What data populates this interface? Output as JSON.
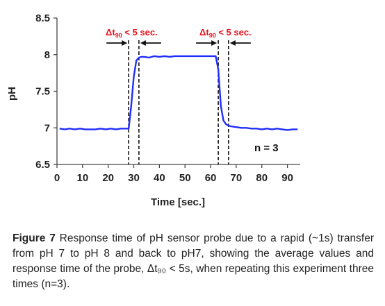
{
  "chart_data": {
    "type": "line",
    "xlabel": "Time [sec.]",
    "ylabel": "pH",
    "xlim": [
      0,
      95
    ],
    "ylim": [
      6.5,
      8.5
    ],
    "x_ticks": [
      "0",
      "10",
      "20",
      "30",
      "40",
      "50",
      "60",
      "70",
      "80",
      "90"
    ],
    "y_ticks": [
      "6.5",
      "7",
      "7.5",
      "8",
      "8.5"
    ],
    "grid": false,
    "line_color": "#1f2dff",
    "x": [
      1,
      3,
      5,
      7,
      9,
      11,
      13,
      15,
      17,
      19,
      21,
      23,
      25,
      27,
      28,
      29,
      30,
      31,
      32,
      33,
      34,
      36,
      38,
      40,
      42,
      44,
      46,
      48,
      50,
      52,
      54,
      56,
      58,
      60,
      62,
      63,
      64,
      65,
      66,
      67,
      68,
      70,
      72,
      74,
      76,
      78,
      80,
      82,
      84,
      86,
      88,
      90,
      92,
      94
    ],
    "y": [
      6.99,
      6.98,
      6.99,
      6.98,
      6.99,
      6.98,
      6.98,
      6.98,
      6.99,
      6.98,
      6.99,
      6.98,
      6.99,
      6.99,
      6.99,
      7.3,
      7.7,
      7.92,
      7.96,
      7.97,
      7.97,
      7.96,
      7.98,
      7.97,
      7.98,
      7.97,
      7.98,
      7.98,
      7.98,
      7.98,
      7.98,
      7.98,
      7.98,
      7.98,
      7.98,
      7.8,
      7.3,
      7.1,
      7.05,
      7.03,
      7.02,
      7.01,
      7.0,
      7.0,
      6.99,
      6.99,
      6.98,
      6.99,
      6.98,
      6.99,
      6.98,
      6.97,
      6.98,
      6.98
    ],
    "vlines": [
      28,
      32,
      63,
      67
    ],
    "annotations": {
      "dt_left_prefix": "Δt",
      "dt_left_sub": "90",
      "dt_left_suffix": " < 5 sec.",
      "dt_right_prefix": "Δt",
      "dt_right_sub": "90",
      "dt_right_suffix": " < 5 sec.",
      "n_label": "n = 3"
    }
  },
  "caption": {
    "label": "Figure 7",
    "text": " Response time of pH sensor probe due to a rapid (~1s) transfer from pH 7 to pH 8 and back to pH7, showing the average values and response time of the probe, Δt₉₀ < 5s, when repeating this experiment three times (n=3)."
  }
}
